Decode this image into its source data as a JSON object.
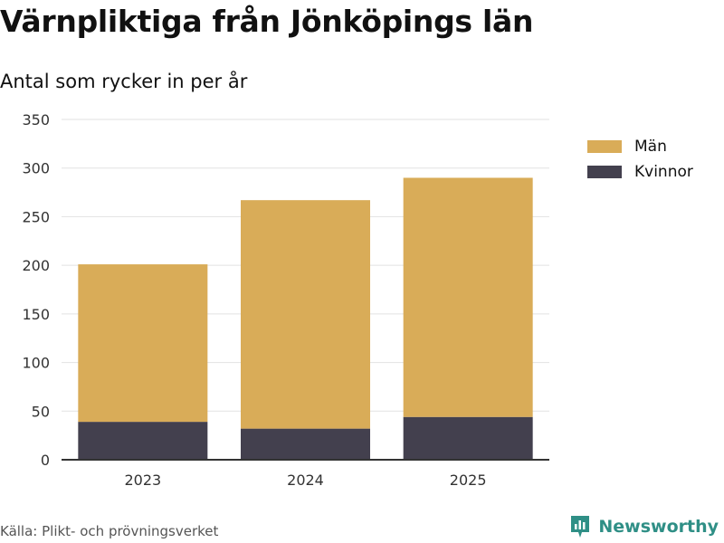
{
  "header": {
    "title": "Värnpliktiga från Jönköpings län",
    "subtitle": "Antal som rycker in per år"
  },
  "footer": {
    "source": "Källa: Plikt- och prövningsverket",
    "brand": "Newsworthy"
  },
  "colors": {
    "man": "#d9ac58",
    "kvinnor": "#43404e",
    "grid": "#e2e2e2",
    "axis": "#333333",
    "brand": "#2f8f86"
  },
  "chart_data": {
    "type": "bar",
    "stacked": true,
    "categories": [
      "2023",
      "2024",
      "2025"
    ],
    "series": [
      {
        "name": "Kvinnor",
        "values": [
          39,
          32,
          44
        ]
      },
      {
        "name": "Män",
        "values": [
          162,
          235,
          246
        ]
      }
    ],
    "legend": [
      "Män",
      "Kvinnor"
    ],
    "legend_position": "top-right",
    "ylim": [
      0,
      350
    ],
    "yticks": [
      0,
      50,
      100,
      150,
      200,
      250,
      300,
      350
    ],
    "grid": true,
    "xlabel": "",
    "ylabel": ""
  }
}
